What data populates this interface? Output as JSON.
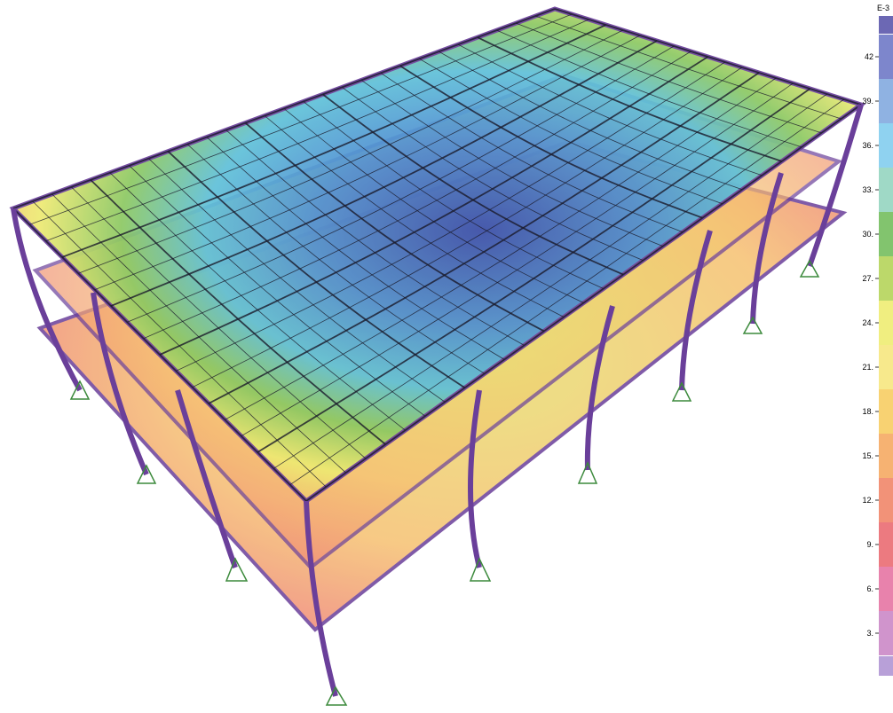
{
  "legend": {
    "unit": "E-3",
    "entries": [
      {
        "label": "42",
        "color": "#7d86cc"
      },
      {
        "label": "39.",
        "color": "#8fb2e2"
      },
      {
        "label": "36.",
        "color": "#8fd2f0"
      },
      {
        "label": "33.",
        "color": "#9fd9c6"
      },
      {
        "label": "30.",
        "color": "#82c46e"
      },
      {
        "label": "27.",
        "color": "#bcd86a"
      },
      {
        "label": "24.",
        "color": "#f0ee80"
      },
      {
        "label": "21.",
        "color": "#f7e98c"
      },
      {
        "label": "18.",
        "color": "#f8d272"
      },
      {
        "label": "15.",
        "color": "#f6b272"
      },
      {
        "label": "12.",
        "color": "#f29278"
      },
      {
        "label": "9.",
        "color": "#ec7a80"
      },
      {
        "label": "6.",
        "color": "#e882ac"
      },
      {
        "label": "3.",
        "color": "#d094cc"
      }
    ]
  }
}
